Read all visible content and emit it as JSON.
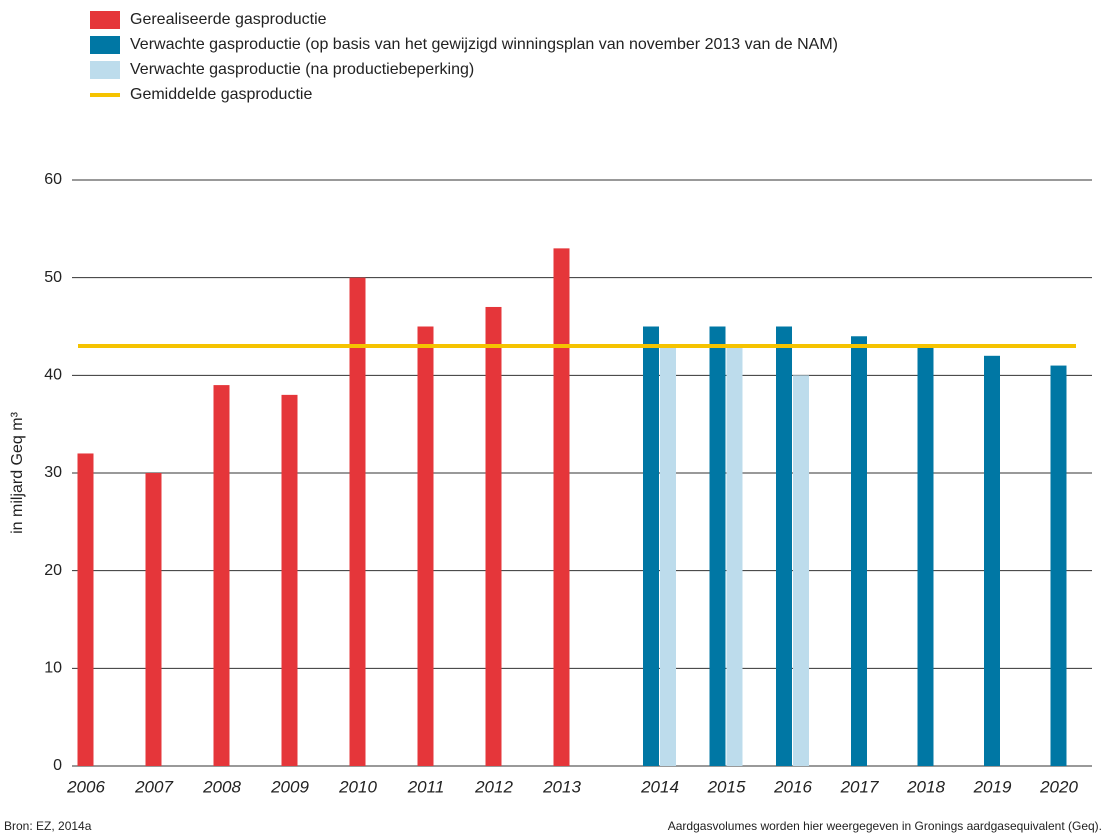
{
  "chart_data": {
    "type": "bar",
    "y_label": "in miljard Geq m³",
    "categories": [
      "2006",
      "2007",
      "2008",
      "2009",
      "2010",
      "2011",
      "2012",
      "2013",
      "2014",
      "2015",
      "2016",
      "2017",
      "2018",
      "2019",
      "2020"
    ],
    "series": [
      {
        "name": "Gerealiseerde gasproductie",
        "color": "#e5363a",
        "values": [
          32,
          30,
          39,
          38,
          50,
          45,
          47,
          53,
          null,
          null,
          null,
          null,
          null,
          null,
          null
        ]
      },
      {
        "name": "Verwachte gasproductie (op basis van het gewijzigd winningsplan van november 2013 van de NAM)",
        "color": "#0077a4",
        "values": [
          null,
          null,
          null,
          null,
          null,
          null,
          null,
          null,
          45,
          45,
          45,
          44,
          43,
          42,
          41
        ]
      },
      {
        "name": "Verwachte gasproductie (na productiebeperking)",
        "color": "#bddcec",
        "values": [
          null,
          null,
          null,
          null,
          null,
          null,
          null,
          null,
          43,
          43,
          40,
          null,
          null,
          null,
          null
        ]
      }
    ],
    "average_line": {
      "name": "Gemiddelde gasproductie",
      "color": "#f5c300",
      "value": 43
    },
    "ylim": [
      0,
      60
    ],
    "yticks": [
      0,
      10,
      20,
      30,
      40,
      50,
      60
    ],
    "grid": true,
    "source": "Bron: EZ, 2014a",
    "note": "Aardgasvolumes worden hier weergegeven in Gronings aardgasequivalent (Geq)."
  }
}
